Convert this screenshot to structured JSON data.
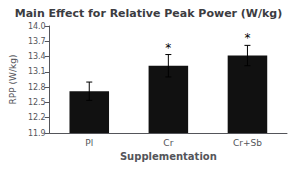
{
  "chart_data": {
    "type": "bar",
    "title": "Main Effect for Relative Peak Power (W/kg)",
    "xlabel": "Supplementation",
    "ylabel": "RPP (W/kg)",
    "categories": [
      "Pl",
      "Cr",
      "Cr+Sb"
    ],
    "values": [
      12.72,
      13.22,
      13.42
    ],
    "errors": [
      0.18,
      0.22,
      0.2
    ],
    "color": "#111111",
    "ylim": [
      11.9,
      14.0
    ],
    "yticks": [
      11.9,
      12.2,
      12.5,
      12.8,
      13.1,
      13.4,
      13.7,
      {
        "value": 14.0,
        "label": "14.0"
      }
    ],
    "annotations": [
      {
        "category": "Cr",
        "text": "*"
      },
      {
        "category": "Cr+Sb",
        "text": "*"
      }
    ],
    "grid": false
  }
}
